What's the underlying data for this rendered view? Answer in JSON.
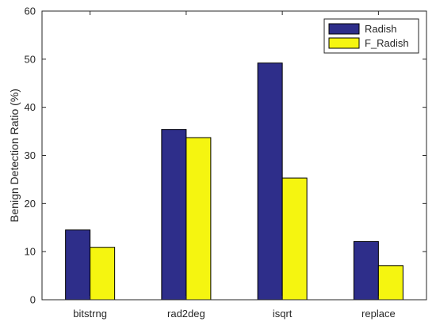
{
  "chart_data": {
    "type": "bar",
    "title": "",
    "xlabel": "",
    "ylabel": "Benign Detection Ratio (%)",
    "categories": [
      "bitstrng",
      "rad2deg",
      "isqrt",
      "replace"
    ],
    "series": [
      {
        "name": "Radish",
        "values": [
          14.5,
          35.4,
          49.2,
          12.1
        ],
        "color": "#2e2e8a"
      },
      {
        "name": "F_Radish",
        "values": [
          10.9,
          33.7,
          25.3,
          7.1
        ],
        "color": "#f5f510"
      }
    ],
    "ylim": [
      0,
      60
    ],
    "yticks": [
      "0",
      "10",
      "20",
      "30",
      "40",
      "50",
      "60"
    ],
    "grid": false,
    "legend_position": "top-right"
  }
}
